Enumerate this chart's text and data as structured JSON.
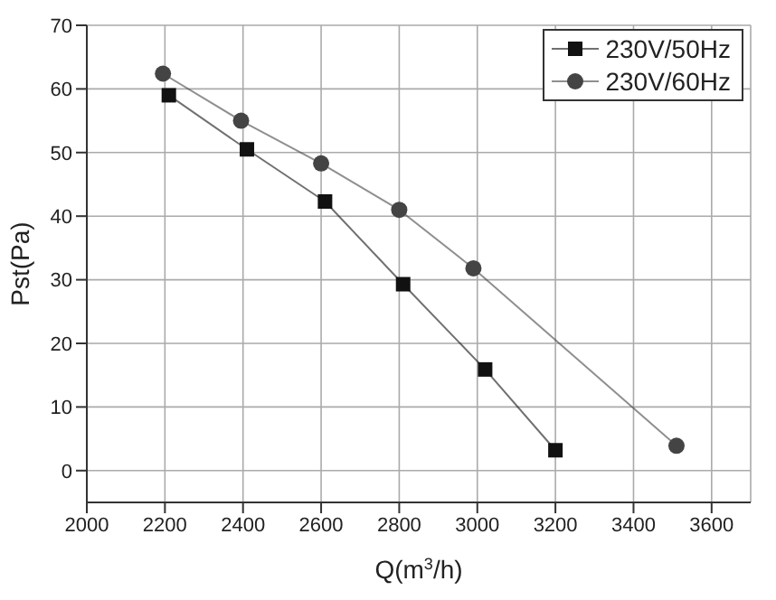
{
  "chart_data": {
    "type": "line",
    "xlabel": "Q(m$^{3}$/h)",
    "ylabel": "Pst(Pa)",
    "xlim": [
      2000,
      3700
    ],
    "xticks": [
      2000,
      2200,
      2400,
      2600,
      2800,
      3000,
      3200,
      3400,
      3600
    ],
    "ylim": [
      -5,
      70
    ],
    "yticks": [
      0,
      10,
      20,
      30,
      40,
      50,
      60,
      70
    ],
    "grid": true,
    "legend": "top right",
    "line_style": "solid",
    "series": [
      {
        "name": "230V/50Hz",
        "color": "#111111",
        "marker": "square",
        "x": [
          2210,
          2410,
          2610,
          2810,
          3020,
          3200
        ],
        "values": [
          59,
          50.5,
          42.3,
          29.3,
          15.9,
          3.2
        ]
      },
      {
        "name": "230V/60Hz",
        "color": "#444444",
        "marker": "circle",
        "x": [
          2195,
          2395,
          2600,
          2800,
          2990,
          3510
        ],
        "values": [
          62.4,
          55,
          48.3,
          41,
          31.8,
          3.9
        ]
      }
    ]
  }
}
